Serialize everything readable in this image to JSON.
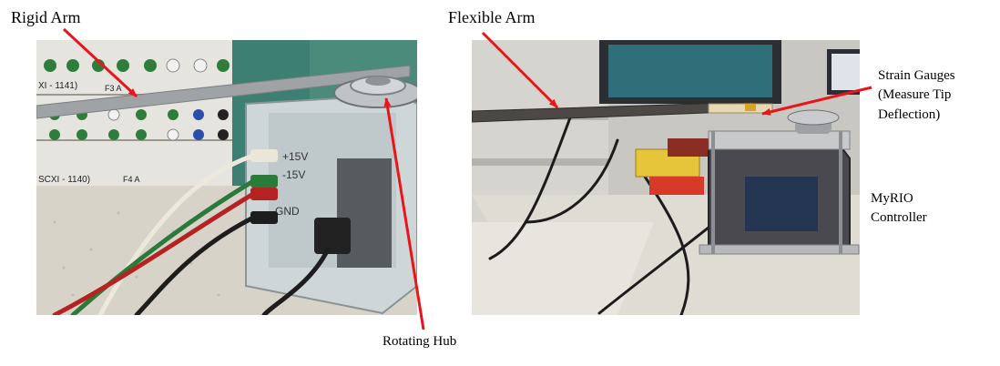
{
  "labels": {
    "rigid_arm": "Rigid Arm",
    "flexible_arm": "Flexible Arm",
    "rotating_hub": "Rotating Hub",
    "strain_gauges_line1": "Strain Gauges",
    "strain_gauges_line2": "(Measure Tip",
    "strain_gauges_line3": "Deflection)",
    "myrio_line1": "MyRIO",
    "myrio_line2": "Controller"
  },
  "left_photo": {
    "panel_labels": [
      "XI - 1141)",
      "F3 A",
      "SCXI - 1140)",
      "F4 A"
    ],
    "box_labels": [
      "+15V",
      "-15V",
      "GND"
    ]
  },
  "colors": {
    "arrow": "#e8161b",
    "text": "#000000"
  }
}
